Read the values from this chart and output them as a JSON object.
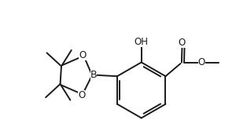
{
  "bg_color": "#ffffff",
  "line_color": "#1a1a1a",
  "line_width": 1.4,
  "font_size": 8.5,
  "fig_width": 3.14,
  "fig_height": 1.76,
  "dpi": 100,
  "xlim": [
    0.0,
    10.0
  ],
  "ylim": [
    -0.3,
    5.8
  ]
}
